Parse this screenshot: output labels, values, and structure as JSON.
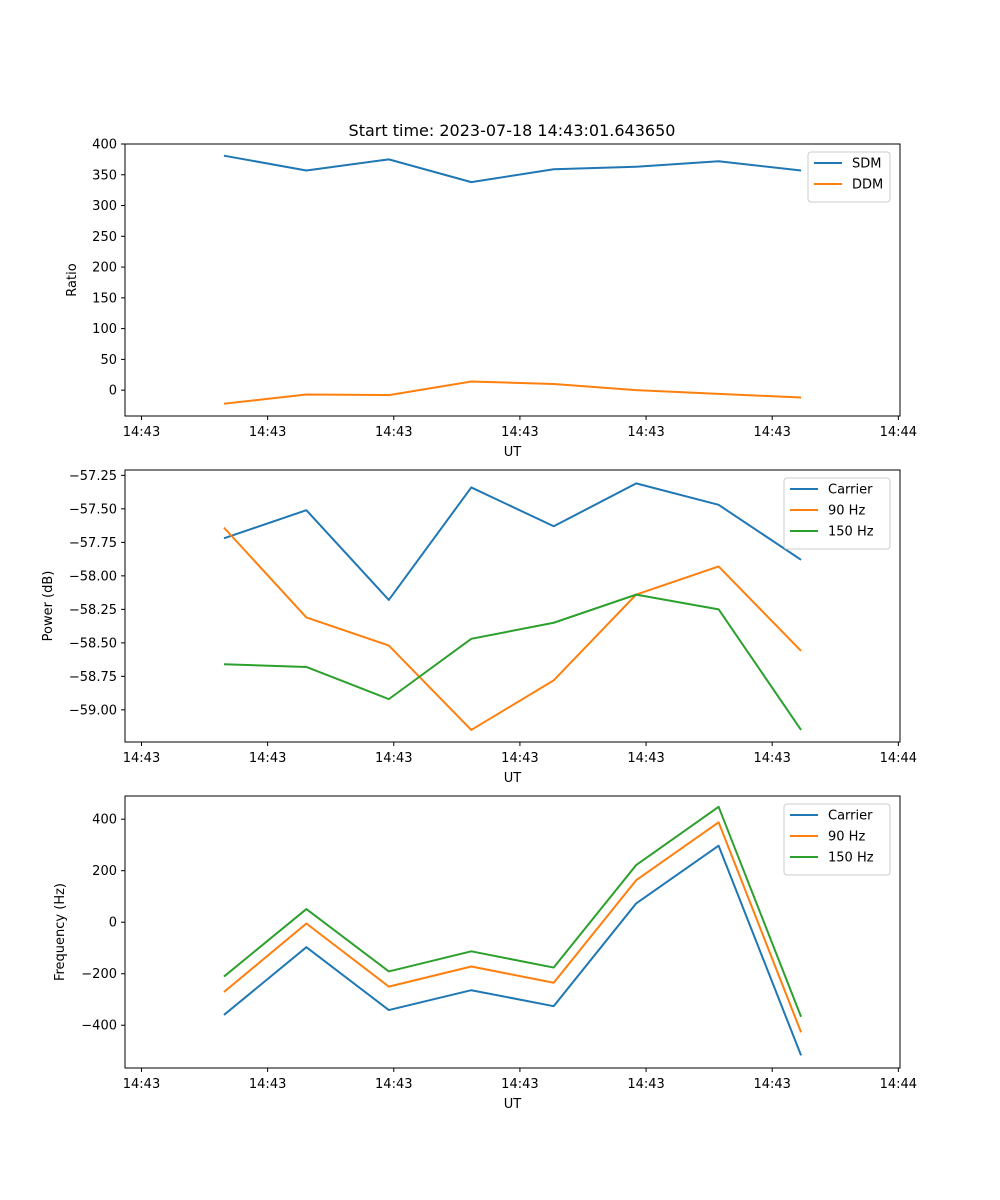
{
  "figure_title": "Start time: 2023-07-18 14:43:01.643650",
  "chart_data": [
    {
      "type": "line",
      "title": "Start time: 2023-07-18 14:43:01.643650",
      "xlabel": "UT",
      "ylabel": "Ratio",
      "x": [
        1.0,
        2.0,
        3.0,
        4.0,
        5.0,
        6.0,
        7.0,
        8.0
      ],
      "xlim": [
        -0.2,
        9.2
      ],
      "xticks": [
        0,
        1.53,
        3.06,
        4.59,
        6.12,
        7.65,
        9.18
      ],
      "xtick_labels": [
        "14:43",
        "14:43",
        "14:43",
        "14:43",
        "14:43",
        "14:43",
        "14:44"
      ],
      "ylim": [
        -42,
        400
      ],
      "yticks": [
        0,
        50,
        100,
        150,
        200,
        250,
        300,
        350,
        400
      ],
      "ytick_labels": [
        "0",
        "50",
        "100",
        "150",
        "200",
        "250",
        "300",
        "350",
        "400"
      ],
      "legend_position": "top-right",
      "series": [
        {
          "name": "SDM",
          "color": "#1f77b4",
          "values": [
            381,
            357,
            375,
            338,
            359,
            363,
            372,
            357
          ]
        },
        {
          "name": "DDM",
          "color": "#ff7f0e",
          "values": [
            -22,
            -7,
            -8,
            14,
            10,
            0,
            -6,
            -12
          ]
        }
      ]
    },
    {
      "type": "line",
      "title": "",
      "xlabel": "UT",
      "ylabel": "Power (dB)",
      "x": [
        1.0,
        2.0,
        3.0,
        4.0,
        5.0,
        6.0,
        7.0,
        8.0
      ],
      "xlim": [
        -0.2,
        9.2
      ],
      "xticks": [
        0,
        1.53,
        3.06,
        4.59,
        6.12,
        7.65,
        9.18
      ],
      "xtick_labels": [
        "14:43",
        "14:43",
        "14:43",
        "14:43",
        "14:43",
        "14:43",
        "14:44"
      ],
      "ylim": [
        -59.24,
        -57.21
      ],
      "yticks": [
        -59.0,
        -58.75,
        -58.5,
        -58.25,
        -58.0,
        -57.75,
        -57.5,
        -57.25
      ],
      "ytick_labels": [
        "−59.00",
        "−58.75",
        "−58.50",
        "−58.25",
        "−58.00",
        "−57.75",
        "−57.50",
        "−57.25"
      ],
      "legend_position": "top-right",
      "series": [
        {
          "name": "Carrier",
          "color": "#1f77b4",
          "values": [
            -57.72,
            -57.51,
            -58.18,
            -57.34,
            -57.63,
            -57.31,
            -57.47,
            -57.88
          ]
        },
        {
          "name": "90 Hz",
          "color": "#ff7f0e",
          "values": [
            -57.64,
            -58.31,
            -58.52,
            -59.15,
            -58.78,
            -58.14,
            -57.93,
            -58.56
          ]
        },
        {
          "name": "150 Hz",
          "color": "#2ca02c",
          "values": [
            -58.66,
            -58.68,
            -58.92,
            -58.47,
            -58.35,
            -58.14,
            -58.25,
            -59.15
          ]
        }
      ]
    },
    {
      "type": "line",
      "title": "",
      "xlabel": "UT",
      "ylabel": "Frequency (Hz)",
      "x": [
        1.0,
        2.0,
        3.0,
        4.0,
        5.0,
        6.0,
        7.0,
        8.0
      ],
      "xlim": [
        -0.2,
        9.2
      ],
      "xticks": [
        0,
        1.53,
        3.06,
        4.59,
        6.12,
        7.65,
        9.18
      ],
      "xtick_labels": [
        "14:43",
        "14:43",
        "14:43",
        "14:43",
        "14:43",
        "14:43",
        "14:44"
      ],
      "ylim": [
        -566,
        490
      ],
      "yticks": [
        -400,
        -200,
        0,
        200,
        400
      ],
      "ytick_labels": [
        "−400",
        "−200",
        "0",
        "200",
        "400"
      ],
      "legend_position": "top-right",
      "series": [
        {
          "name": "Carrier",
          "color": "#1f77b4",
          "values": [
            -360,
            -97,
            -341,
            -264,
            -326,
            73,
            297,
            -517
          ]
        },
        {
          "name": "90 Hz",
          "color": "#ff7f0e",
          "values": [
            -271,
            -5,
            -250,
            -172,
            -235,
            163,
            388,
            -427
          ]
        },
        {
          "name": "150 Hz",
          "color": "#2ca02c",
          "values": [
            -211,
            51,
            -191,
            -113,
            -176,
            222,
            448,
            -367
          ]
        }
      ]
    }
  ]
}
